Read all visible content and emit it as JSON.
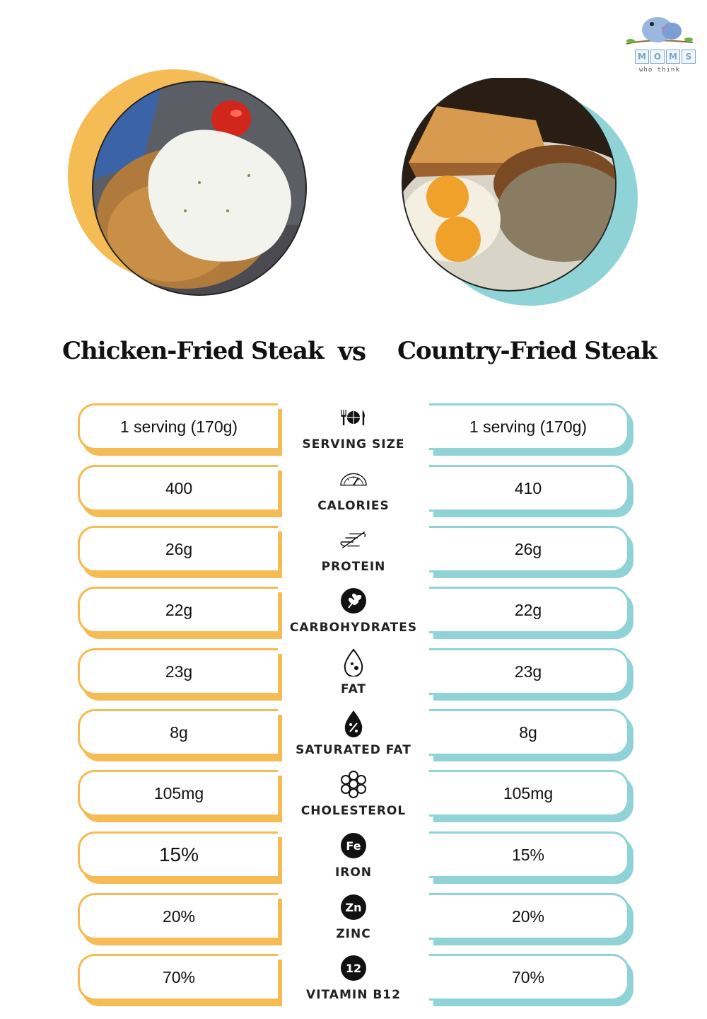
{
  "logo": {
    "letters": [
      "M",
      "O",
      "M",
      "S"
    ],
    "tagline": "who think"
  },
  "header": {
    "left_title": "Chicken-Fried Steak",
    "vs": "vs",
    "right_title": "Country-Fried Steak"
  },
  "colors": {
    "left_accent": "#f5bb54",
    "right_accent": "#8fd3d6"
  },
  "rows": [
    {
      "label": "SERVING SIZE",
      "icon": "utensils-plate-icon",
      "left": "1 serving (170g)",
      "right": "1 serving (170g)"
    },
    {
      "label": "CALORIES",
      "icon": "gauge-icon",
      "left": "400",
      "right": "410"
    },
    {
      "label": "PROTEIN",
      "icon": "dna-icon",
      "left": "26g",
      "right": "26g"
    },
    {
      "label": "CARBOHYDRATES",
      "icon": "wheat-icon",
      "left": "22g",
      "right": "22g"
    },
    {
      "label": "FAT",
      "icon": "drop-icon",
      "left": "23g",
      "right": "23g"
    },
    {
      "label": "SATURATED FAT",
      "icon": "percent-drop-icon",
      "left": "8g",
      "right": "8g"
    },
    {
      "label": "CHOLESTEROL",
      "icon": "molecule-icon",
      "left": "105mg",
      "right": "105mg"
    },
    {
      "label": "IRON",
      "icon": "fe-icon",
      "icon_text": "Fe",
      "left": "15%",
      "right": "15%"
    },
    {
      "label": "ZINC",
      "icon": "zn-icon",
      "icon_text": "Zn",
      "left": "20%",
      "right": "20%"
    },
    {
      "label": "VITAMIN B12",
      "icon": "b12-icon",
      "icon_text": "12",
      "left": "70%",
      "right": "70%"
    }
  ]
}
